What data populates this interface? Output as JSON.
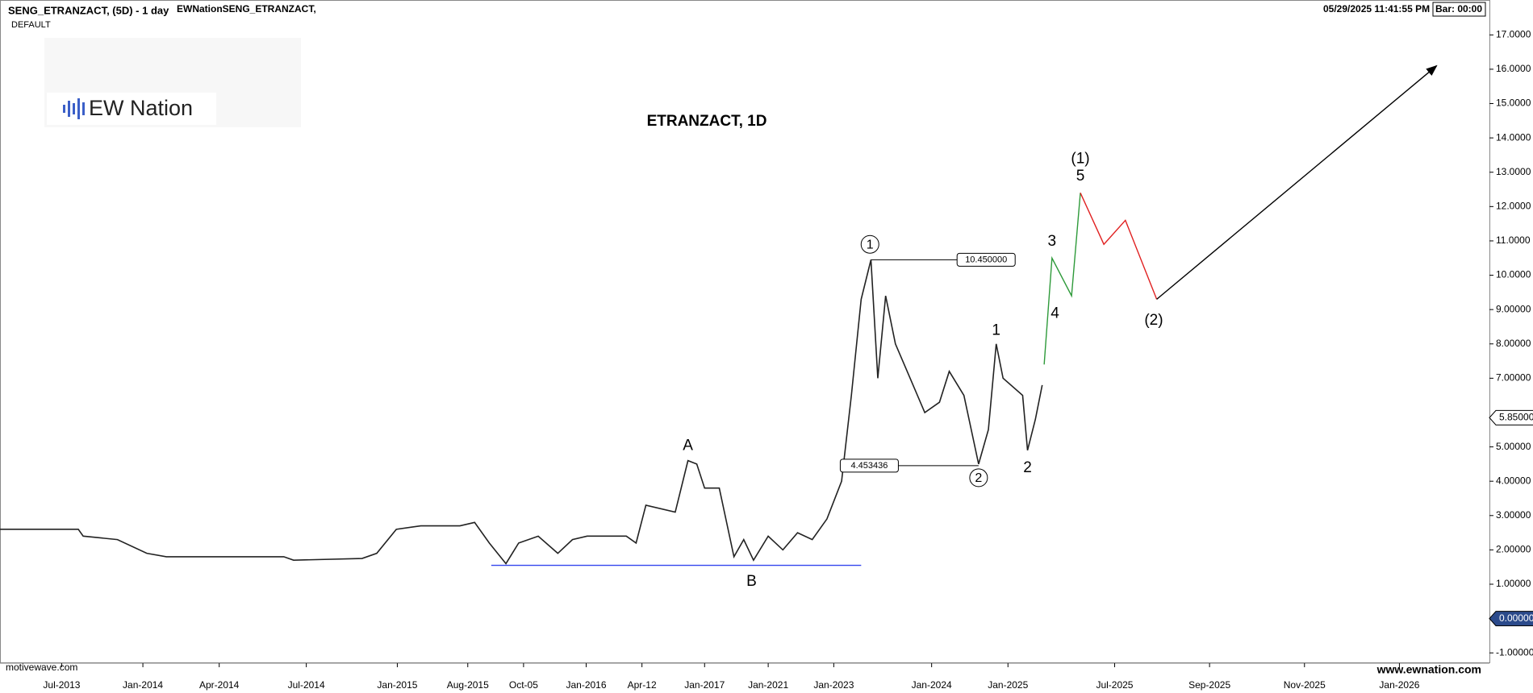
{
  "chart_data": {
    "type": "line",
    "symbol_title": "SENG_ETRANZACT, (5D) - 1 day",
    "source": "EWNationSENG_ETRANZACT,",
    "template": "DEFAULT",
    "timestamp": "05/29/2025 11:41:55 PM",
    "bar_timer": "Bar: 00:00",
    "logo": "EW Nation",
    "title": "ETRANZACT, 1D",
    "footer_left": "motivewave.com",
    "footer_right": "www.ewnation.com",
    "xlim": [
      0,
      1522
    ],
    "ylim": [
      -1.3,
      17.5
    ],
    "xticks": [
      {
        "value": 63,
        "label": "Jul-2013"
      },
      {
        "value": 146,
        "label": "Jan-2014"
      },
      {
        "value": 224,
        "label": "Apr-2014"
      },
      {
        "value": 313,
        "label": "Jul-2014"
      },
      {
        "value": 406,
        "label": "Jan-2015"
      },
      {
        "value": 478,
        "label": "Aug-2015"
      },
      {
        "value": 535,
        "label": "Oct-05"
      },
      {
        "value": 599,
        "label": "Jan-2016"
      },
      {
        "value": 656,
        "label": "Apr-12"
      },
      {
        "value": 720,
        "label": "Jan-2017"
      },
      {
        "value": 785,
        "label": "Jan-2021"
      },
      {
        "value": 852,
        "label": "Jan-2023"
      },
      {
        "value": 952,
        "label": "Jan-2024"
      },
      {
        "value": 1030,
        "label": "Jan-2025"
      },
      {
        "value": 1139,
        "label": "Jul-2025"
      },
      {
        "value": 1236,
        "label": "Sep-2025"
      },
      {
        "value": 1333,
        "label": "Nov-2025"
      },
      {
        "value": 1430,
        "label": "Jan-2026"
      }
    ],
    "yticks": [
      {
        "value": -1,
        "label": "-1.00000"
      },
      {
        "value": 1,
        "label": "1.00000"
      },
      {
        "value": 2,
        "label": "2.00000"
      },
      {
        "value": 3,
        "label": "3.00000"
      },
      {
        "value": 4,
        "label": "4.00000"
      },
      {
        "value": 5,
        "label": "5.00000"
      },
      {
        "value": 7,
        "label": "7.00000"
      },
      {
        "value": 8,
        "label": "8.00000"
      },
      {
        "value": 9,
        "label": "9.00000"
      },
      {
        "value": 10,
        "label": "10.0000"
      },
      {
        "value": 11,
        "label": "11.0000"
      },
      {
        "value": 12,
        "label": "12.0000"
      },
      {
        "value": 13,
        "label": "13.0000"
      },
      {
        "value": 14,
        "label": "14.0000"
      },
      {
        "value": 15,
        "label": "15.0000"
      },
      {
        "value": 16,
        "label": "16.0000"
      },
      {
        "value": 17,
        "label": "17.0000"
      }
    ],
    "price_markers": [
      {
        "value": 5.85,
        "label": "5.85000",
        "color": "#ffffff"
      },
      {
        "value": 0,
        "label": "0.00000",
        "color": "#2b4a8b"
      }
    ],
    "series": [
      {
        "name": "Price",
        "color": "#222222",
        "arrow": false,
        "x": [
          0,
          80,
          85,
          120,
          150,
          170,
          290,
          300,
          370,
          385,
          405,
          430,
          470,
          485,
          500,
          517,
          530,
          550,
          570,
          585,
          600,
          640,
          650,
          660,
          690,
          703,
          712,
          720,
          735,
          750,
          760,
          770,
          785,
          800,
          815,
          830,
          845,
          860,
          870,
          880,
          890,
          897,
          905,
          915,
          930,
          945,
          960,
          970,
          985,
          1000,
          1010,
          1018,
          1025,
          1045,
          1050,
          1058,
          1065
        ],
        "values": [
          2.6,
          2.6,
          2.4,
          2.3,
          1.9,
          1.8,
          1.8,
          1.7,
          1.75,
          1.9,
          2.6,
          2.7,
          2.7,
          2.8,
          2.2,
          1.6,
          2.2,
          2.4,
          1.9,
          2.3,
          2.4,
          2.4,
          2.2,
          3.3,
          3.1,
          4.6,
          4.5,
          3.8,
          3.8,
          1.8,
          2.3,
          1.7,
          2.4,
          2.0,
          2.5,
          2.3,
          2.9,
          4.0,
          6.5,
          9.3,
          10.45,
          7.0,
          9.4,
          8.0,
          7.0,
          6.0,
          6.3,
          7.2,
          6.5,
          4.5,
          5.5,
          8.0,
          7.0,
          6.5,
          4.9,
          5.8,
          6.8
        ]
      },
      {
        "name": "Wave (1)",
        "color": "#2e9a3a",
        "arrow": false,
        "x": [
          1067,
          1075,
          1095,
          1104
        ],
        "values": [
          7.4,
          10.5,
          9.4,
          12.4
        ]
      },
      {
        "name": "Wave (2)",
        "color": "#e02020",
        "arrow": false,
        "x": [
          1104,
          1128,
          1150,
          1182
        ],
        "values": [
          12.4,
          10.9,
          11.6,
          9.3
        ]
      },
      {
        "name": "Projection",
        "color": "#000000",
        "arrow": true,
        "x": [
          1182,
          1468
        ],
        "values": [
          9.3,
          16.1
        ]
      },
      {
        "name": "Support",
        "color": "#3344ee",
        "arrow": false,
        "x": [
          502,
          880
        ],
        "values": [
          1.55,
          1.55
        ]
      }
    ],
    "annotations": [
      {
        "text": "A",
        "x": 703,
        "y": 5.05,
        "circled": false
      },
      {
        "text": "B",
        "x": 768,
        "y": 1.1,
        "circled": false
      },
      {
        "text": "1",
        "x": 889,
        "y": 10.9,
        "circled": true
      },
      {
        "text": "2",
        "x": 1000,
        "y": 4.1,
        "circled": true
      },
      {
        "text": "1",
        "x": 1018,
        "y": 8.4,
        "circled": false
      },
      {
        "text": "2",
        "x": 1050,
        "y": 4.4,
        "circled": false
      },
      {
        "text": "3",
        "x": 1075,
        "y": 11.0,
        "circled": false
      },
      {
        "text": "4",
        "x": 1078,
        "y": 8.9,
        "circled": false
      },
      {
        "text": "5",
        "x": 1104,
        "y": 12.9,
        "circled": false
      },
      {
        "text": "(1)",
        "x": 1104,
        "y": 13.4,
        "circled": false
      },
      {
        "text": "(2)",
        "x": 1179,
        "y": 8.7,
        "circled": false
      }
    ],
    "price_boxes": [
      {
        "value": 10.45,
        "label": "10.450000",
        "x_from": 890,
        "x_to": 978
      },
      {
        "value": 4.453436,
        "label": "4.453436",
        "x_from": 1000,
        "x_to": 918
      }
    ]
  }
}
